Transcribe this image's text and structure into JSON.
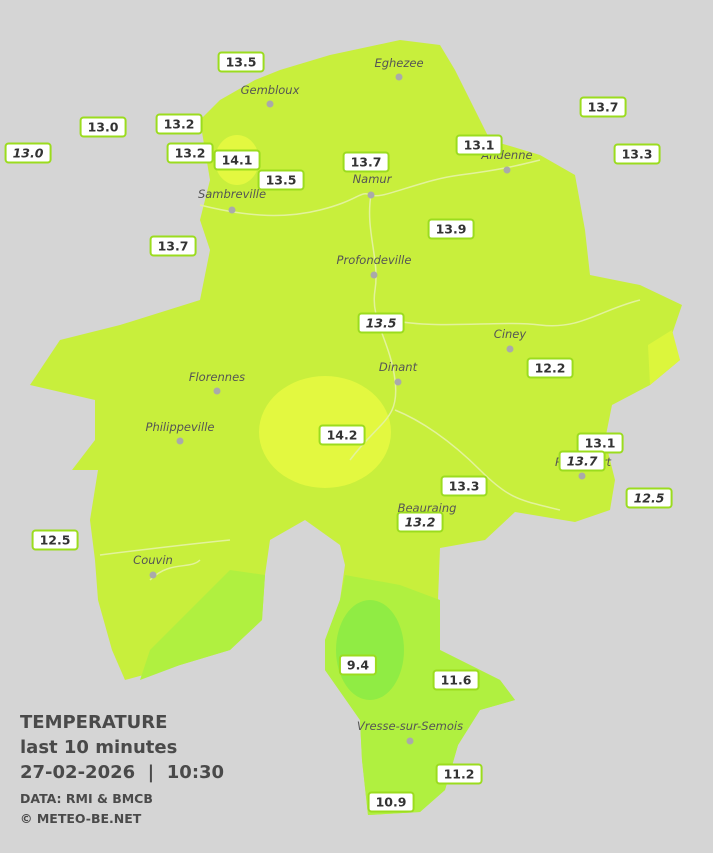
{
  "towns": [
    "Eghezee",
    "Gembloux",
    "Andenne",
    "Namur",
    "Sambreville",
    "Profondeville",
    "Ciney",
    "Dinant",
    "Florennes",
    "Philippeville",
    "Rochefort",
    "Beauraing",
    "Couvin",
    "Vresse-sur-Semois"
  ],
  "stations": [
    {
      "value": "13.5",
      "italic": false
    },
    {
      "value": "13.0",
      "italic": false
    },
    {
      "value": "13.2",
      "italic": false
    },
    {
      "value": "13.0",
      "italic": true
    },
    {
      "value": "13.2",
      "italic": false
    },
    {
      "value": "14.1",
      "italic": false
    },
    {
      "value": "13.5",
      "italic": false
    },
    {
      "value": "13.7",
      "italic": false
    },
    {
      "value": "13.1",
      "italic": false
    },
    {
      "value": "13.7",
      "italic": false
    },
    {
      "value": "13.3",
      "italic": false
    },
    {
      "value": "13.7",
      "italic": false
    },
    {
      "value": "13.9",
      "italic": false
    },
    {
      "value": "13.5",
      "italic": true
    },
    {
      "value": "12.2",
      "italic": false
    },
    {
      "value": "14.2",
      "italic": false
    },
    {
      "value": "13.1",
      "italic": false
    },
    {
      "value": "13.7",
      "italic": true
    },
    {
      "value": "12.5",
      "italic": true
    },
    {
      "value": "13.3",
      "italic": false
    },
    {
      "value": "13.2",
      "italic": true
    },
    {
      "value": "12.5",
      "italic": false
    },
    {
      "value": "9.4",
      "italic": false
    },
    {
      "value": "11.6",
      "italic": false
    },
    {
      "value": "11.2",
      "italic": false
    },
    {
      "value": "10.9",
      "italic": false
    }
  ],
  "legend": {
    "title": "TEMPERATURE",
    "subtitle": "last 10 minutes",
    "datetime": "27-02-2026  |  10:30",
    "source": "DATA: RMI & BMCB",
    "copyright": "© METEO-BE.NET"
  }
}
